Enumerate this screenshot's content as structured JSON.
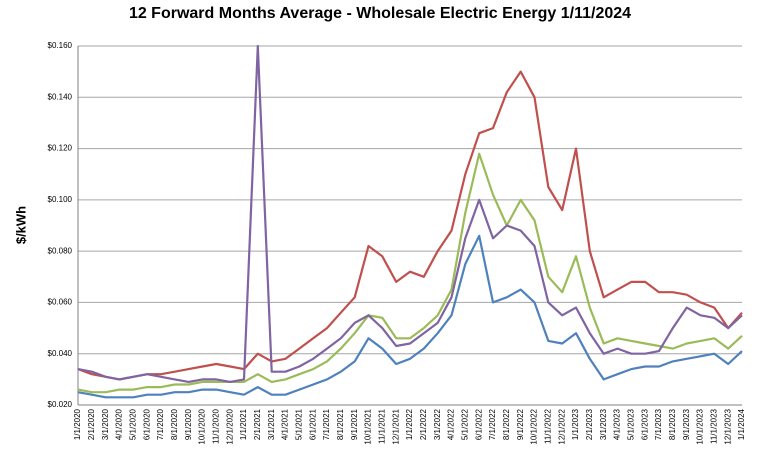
{
  "chart_data": {
    "type": "line",
    "title": "12 Forward Months Average - Wholesale Electric Energy 1/11/2024",
    "y_label": "$/kWh",
    "categories": [
      "1/1/2020",
      "2/1/2020",
      "3/1/2020",
      "4/1/2020",
      "5/1/2020",
      "6/1/2020",
      "7/1/2020",
      "8/1/2020",
      "9/1/2020",
      "10/1/2020",
      "11/1/2020",
      "12/1/2020",
      "1/1/2021",
      "2/1/2021",
      "3/1/2021",
      "4/1/2021",
      "5/1/2021",
      "6/1/2021",
      "7/1/2021",
      "8/1/2021",
      "9/1/2021",
      "10/1/2021",
      "11/1/2021",
      "12/1/2021",
      "1/1/2022",
      "2/1/2022",
      "3/1/2022",
      "4/1/2022",
      "5/1/2022",
      "6/1/2022",
      "7/1/2022",
      "8/1/2022",
      "9/1/2022",
      "10/1/2022",
      "11/1/2022",
      "12/1/2022",
      "1/1/2023",
      "2/1/2023",
      "3/1/2023",
      "4/1/2023",
      "5/1/2023",
      "6/1/2023",
      "7/1/2023",
      "8/1/2023",
      "9/1/2023",
      "10/1/2023",
      "11/1/2023",
      "12/1/2023",
      "1/1/2024"
    ],
    "series": [
      {
        "color": "#c0504d",
        "values": [
          0.034,
          0.032,
          0.031,
          0.03,
          0.031,
          0.032,
          0.032,
          0.033,
          0.034,
          0.035,
          0.036,
          0.035,
          0.034,
          0.04,
          0.037,
          0.038,
          0.042,
          0.046,
          0.05,
          0.056,
          0.062,
          0.082,
          0.078,
          0.068,
          0.072,
          0.07,
          0.08,
          0.088,
          0.11,
          0.126,
          0.128,
          0.142,
          0.15,
          0.14,
          0.105,
          0.096,
          0.12,
          0.08,
          0.062,
          0.065,
          0.068,
          0.068,
          0.064,
          0.064,
          0.063,
          0.06,
          0.058,
          0.05,
          0.056
        ]
      },
      {
        "color": "#9bbb59",
        "values": [
          0.026,
          0.025,
          0.025,
          0.026,
          0.026,
          0.027,
          0.027,
          0.028,
          0.028,
          0.029,
          0.029,
          0.029,
          0.029,
          0.032,
          0.029,
          0.03,
          0.032,
          0.034,
          0.037,
          0.042,
          0.048,
          0.055,
          0.054,
          0.046,
          0.046,
          0.05,
          0.055,
          0.065,
          0.095,
          0.118,
          0.102,
          0.09,
          0.1,
          0.092,
          0.07,
          0.064,
          0.078,
          0.058,
          0.044,
          0.046,
          0.045,
          0.044,
          0.043,
          0.042,
          0.044,
          0.045,
          0.046,
          0.042,
          0.047
        ]
      },
      {
        "color": "#8064a2",
        "values": [
          0.034,
          0.033,
          0.031,
          0.03,
          0.031,
          0.032,
          0.031,
          0.03,
          0.029,
          0.03,
          0.03,
          0.029,
          0.03,
          0.16,
          0.033,
          0.033,
          0.035,
          0.038,
          0.042,
          0.046,
          0.052,
          0.055,
          0.05,
          0.043,
          0.044,
          0.048,
          0.052,
          0.062,
          0.085,
          0.1,
          0.085,
          0.09,
          0.088,
          0.082,
          0.06,
          0.055,
          0.058,
          0.048,
          0.04,
          0.042,
          0.04,
          0.04,
          0.041,
          0.05,
          0.058,
          0.055,
          0.054,
          0.05,
          0.055
        ]
      },
      {
        "color": "#4f81bd",
        "values": [
          0.025,
          0.024,
          0.023,
          0.023,
          0.023,
          0.024,
          0.024,
          0.025,
          0.025,
          0.026,
          0.026,
          0.025,
          0.024,
          0.027,
          0.024,
          0.024,
          0.026,
          0.028,
          0.03,
          0.033,
          0.037,
          0.046,
          0.042,
          0.036,
          0.038,
          0.042,
          0.048,
          0.055,
          0.075,
          0.086,
          0.06,
          0.062,
          0.065,
          0.06,
          0.045,
          0.044,
          0.048,
          0.038,
          0.03,
          0.032,
          0.034,
          0.035,
          0.035,
          0.037,
          0.038,
          0.039,
          0.04,
          0.036,
          0.041
        ]
      }
    ],
    "ylim": [
      0.02,
      0.16
    ],
    "yticks": [
      {
        "value": 0.02,
        "label": "$0.020"
      },
      {
        "value": 0.04,
        "label": "$0.040"
      },
      {
        "value": 0.06,
        "label": "$0.060"
      },
      {
        "value": 0.08,
        "label": "$0.080"
      },
      {
        "value": 0.1,
        "label": "$0.100"
      },
      {
        "value": 0.12,
        "label": "$0.120"
      },
      {
        "value": 0.14,
        "label": "$0.140"
      },
      {
        "value": 0.16,
        "label": "$0.160"
      }
    ],
    "grid": true
  }
}
